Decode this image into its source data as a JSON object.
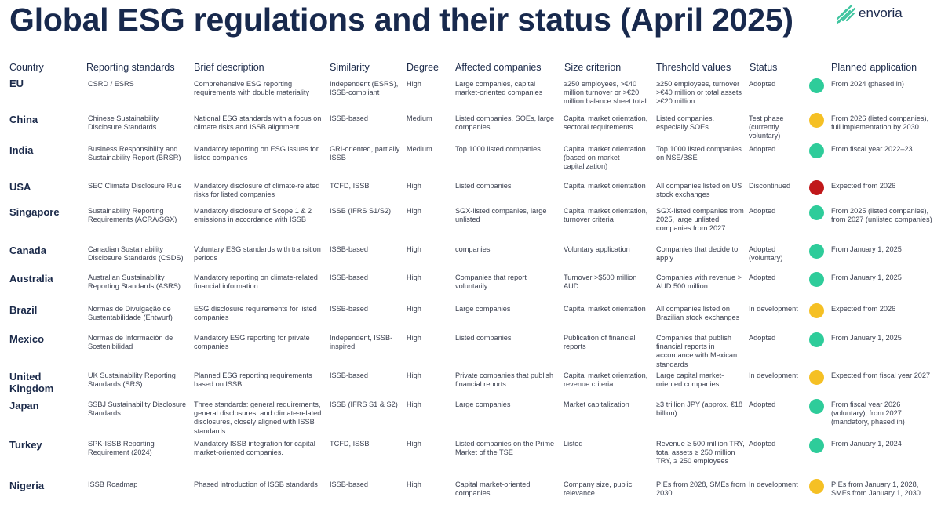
{
  "title": "Global ESG regulations and their status (April 2025)",
  "logo": {
    "text": "envoria",
    "icon": "envoria-logo-icon"
  },
  "headers": [
    "Country",
    "Reporting standards",
    "Brief description",
    "Similarity",
    "Degree",
    "Affected companies",
    "Size criterion",
    "Threshold values",
    "Status",
    "Planned application"
  ],
  "colors": {
    "green": "#2ecc9a",
    "yellow": "#f5c024",
    "red": "#c0181a",
    "accent": "#3fc59f",
    "title": "#18294d"
  },
  "rows": [
    {
      "country": "EU",
      "standard": "CSRD / ESRS",
      "description": "Comprehensive ESG reporting requirements with double materiality",
      "similarity": "Independent (ESRS), ISSB-compliant",
      "degree": "High",
      "affected": "Large companies, capital market-oriented companies",
      "size": "≥250 employees, >€40 million turnover or >€20 million balance sheet total",
      "threshold": "≥250 employees, turnover >€40 million or total assets >€20 million",
      "status": "Adopted",
      "status_color": "green",
      "application": "From 2024 (phased in)"
    },
    {
      "country": "China",
      "standard": "Chinese Sustainability Disclosure Standards",
      "description": "National ESG standards with a focus on climate risks and ISSB alignment",
      "similarity": "ISSB-based",
      "degree": "Medium",
      "affected": "Listed companies, SOEs, large companies",
      "size": "Capital market orientation, sectoral requirements",
      "threshold": "Listed companies, especially SOEs",
      "status": "Test phase (currently voluntary)",
      "status_color": "yellow",
      "application": "From 2026 (listed companies), full implementation by 2030"
    },
    {
      "country": "India",
      "standard": "Business Responsibility and Sustainability Report (BRSR)",
      "description": "Mandatory reporting on ESG issues for listed companies",
      "similarity": "GRI-oriented, partially ISSB",
      "degree": "Medium",
      "affected": "Top 1000 listed companies",
      "size": "Capital market orientation (based on market capitalization)",
      "threshold": "Top 1000 listed companies on NSE/BSE",
      "status": "Adopted",
      "status_color": "green",
      "application": "From fiscal year 2022–23"
    },
    {
      "country": "USA",
      "standard": "SEC Climate Disclosure Rule",
      "description": "Mandatory disclosure of climate-related risks for listed companies",
      "similarity": "TCFD, ISSB",
      "degree": "High",
      "affected": "Listed companies",
      "size": "Capital market orientation",
      "threshold": "All companies listed on US stock exchanges",
      "status": "Discontinued",
      "status_color": "red",
      "application": "Expected from 2026"
    },
    {
      "country": "Singapore",
      "standard": "Sustainability Reporting Requirements (ACRA/SGX)",
      "description": "Mandatory disclosure of Scope 1 & 2 emissions in accordance with ISSB",
      "similarity": "ISSB (IFRS S1/S2)",
      "degree": "High",
      "affected": "SGX-listed companies, large unlisted",
      "size": "Capital market orientation, turnover criteria",
      "threshold": "SGX-listed companies from 2025, large unlisted companies from 2027",
      "status": "Adopted",
      "status_color": "green",
      "application": "From 2025 (listed companies), from 2027 (unlisted companies)"
    },
    {
      "country": "Canada",
      "standard": "Canadian Sustainability Disclosure Standards (CSDS)",
      "description": "Voluntary ESG standards with transition periods",
      "similarity": "ISSB-based",
      "degree": "High",
      "affected": "companies",
      "size": "Voluntary application",
      "threshold": "Companies that decide to apply",
      "status": "Adopted (voluntary)",
      "status_color": "green",
      "application": "From January 1, 2025"
    },
    {
      "country": "Australia",
      "standard": "Australian Sustainability Reporting Standards (ASRS)",
      "description": "Mandatory reporting on climate-related financial information",
      "similarity": "ISSB-based",
      "degree": "High",
      "affected": "Companies that report voluntarily",
      "size": "Turnover >$500 million AUD",
      "threshold": "Companies with revenue > AUD 500 million",
      "status": "Adopted",
      "status_color": "green",
      "application": "From January 1, 2025"
    },
    {
      "country": "Brazil",
      "standard": "Normas de Divulgação de Sustentabilidade (Entwurf)",
      "description": "ESG disclosure requirements for listed companies",
      "similarity": "ISSB-based",
      "degree": "High",
      "affected": "Large companies",
      "size": "Capital market orientation",
      "threshold": "All companies listed on Brazilian stock exchanges",
      "status": "In development",
      "status_color": "yellow",
      "application": "Expected from 2026"
    },
    {
      "country": "Mexico",
      "standard": "Normas de Información de Sostenibilidad",
      "description": "Mandatory ESG reporting for private companies",
      "similarity": "Independent, ISSB-inspired",
      "degree": "High",
      "affected": "Listed companies",
      "size": "Publication of financial reports",
      "threshold": "Companies that publish financial reports in accordance with Mexican standards",
      "status": "Adopted",
      "status_color": "green",
      "application": "From January 1, 2025"
    },
    {
      "country": "United Kingdom",
      "standard": "UK Sustainability Reporting Standards (SRS)",
      "description": "Planned ESG reporting requirements based on ISSB",
      "similarity": "ISSB-based",
      "degree": "High",
      "affected": "Private companies that publish financial reports",
      "size": "Capital market orientation, revenue criteria",
      "threshold": "Large capital market-oriented companies",
      "status": "In development",
      "status_color": "yellow",
      "application": "Expected from fiscal year 2027"
    },
    {
      "country": "Japan",
      "standard": "SSBJ Sustainability Disclosure Standards",
      "description": "Three standards: general requirements, general disclosures, and climate-related disclosures, closely aligned with ISSB standards",
      "similarity": "ISSB (IFRS S1 & S2)",
      "degree": "High",
      "affected": "Large companies",
      "size": "Market capitalization",
      "threshold": "≥3 trillion JPY (approx. €18 billion)",
      "status": "Adopted",
      "status_color": "green",
      "application": "From fiscal year 2026 (voluntary), from 2027 (mandatory, phased in)"
    },
    {
      "country": "Turkey",
      "standard": "SPK-ISSB Reporting Requirement (2024)",
      "description": "Mandatory ISSB integration for capital market-oriented companies.",
      "similarity": "TCFD, ISSB",
      "degree": "High",
      "affected": "Listed companies on the Prime Market of the TSE",
      "size": "Listed",
      "threshold": "Revenue ≥ 500 million TRY, total assets ≥ 250 million TRY, ≥ 250 employees",
      "status": "Adopted",
      "status_color": "green",
      "application": "From January 1, 2024"
    },
    {
      "country": "Nigeria",
      "standard": "ISSB Roadmap",
      "description": "Phased introduction of ISSB standards",
      "similarity": "ISSB-based",
      "degree": "High",
      "affected": "Capital market-oriented companies",
      "size": "Company size, public relevance",
      "threshold": "PIEs from 2028, SMEs from 2030",
      "status": "In development",
      "status_color": "yellow",
      "application": "PIEs from January 1, 2028, SMEs from January 1, 2030"
    }
  ]
}
